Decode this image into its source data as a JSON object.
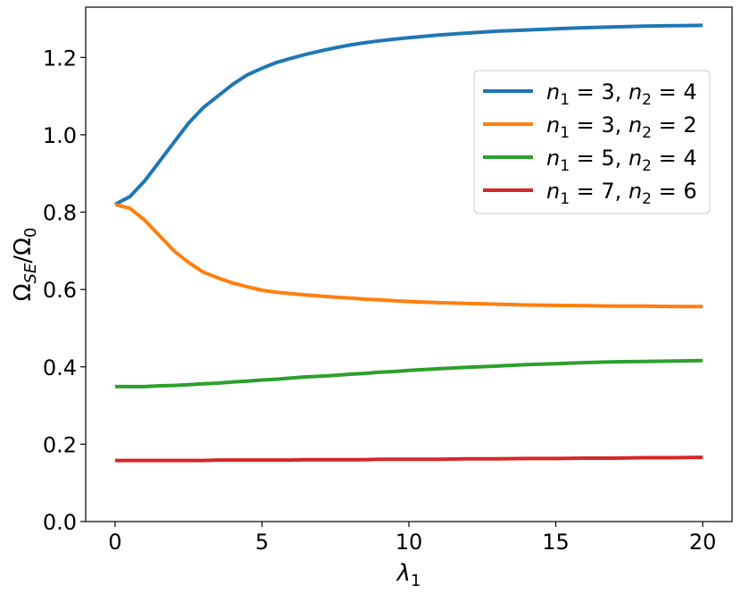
{
  "chart_data": {
    "type": "line",
    "xlabel_base": "λ",
    "xlabel_sub": "1",
    "ylabel_base": "Ω",
    "ylabel_sub1": "SE",
    "ylabel_mid": "/Ω",
    "ylabel_sub2": "0",
    "xlim": [
      -1,
      21
    ],
    "ylim": [
      0.0,
      1.33
    ],
    "xticks": [
      0,
      5,
      10,
      15,
      20
    ],
    "xtick_labels": [
      "0",
      "5",
      "10",
      "15",
      "20"
    ],
    "yticks": [
      0.0,
      0.2,
      0.4,
      0.6,
      0.8,
      1.0,
      1.2
    ],
    "ytick_labels": [
      "0.0",
      "0.2",
      "0.4",
      "0.6",
      "0.8",
      "1.0",
      "1.2"
    ],
    "grid": false,
    "legend_position": "upper-right",
    "x": [
      0,
      0.5,
      1,
      1.5,
      2,
      2.5,
      3,
      3.5,
      4,
      4.5,
      5,
      5.5,
      6,
      6.5,
      7,
      7.5,
      8,
      8.5,
      9,
      9.5,
      10,
      11,
      12,
      13,
      14,
      15,
      16,
      17,
      18,
      19,
      20
    ],
    "series": [
      {
        "name_parts": [
          "n",
          "1",
          " = 3, ",
          "n",
          "2",
          " = 4"
        ],
        "color": "#1f77b4",
        "values": [
          0.82,
          0.84,
          0.88,
          0.93,
          0.98,
          1.03,
          1.07,
          1.1,
          1.13,
          1.155,
          1.172,
          1.187,
          1.198,
          1.208,
          1.217,
          1.225,
          1.232,
          1.238,
          1.243,
          1.247,
          1.251,
          1.258,
          1.263,
          1.268,
          1.271,
          1.274,
          1.277,
          1.279,
          1.281,
          1.282,
          1.283
        ]
      },
      {
        "name_parts": [
          "n",
          "1",
          " = 3, ",
          "n",
          "2",
          " = 2"
        ],
        "color": "#ff7f0e",
        "values": [
          0.82,
          0.81,
          0.78,
          0.74,
          0.7,
          0.67,
          0.645,
          0.63,
          0.617,
          0.607,
          0.598,
          0.593,
          0.589,
          0.586,
          0.583,
          0.58,
          0.578,
          0.575,
          0.573,
          0.571,
          0.569,
          0.566,
          0.564,
          0.562,
          0.56,
          0.559,
          0.558,
          0.557,
          0.557,
          0.556,
          0.556
        ]
      },
      {
        "name_parts": [
          "n",
          "1",
          " = 5, ",
          "n",
          "2",
          " = 4"
        ],
        "color": "#2ca02c",
        "values": [
          0.349,
          0.349,
          0.349,
          0.351,
          0.352,
          0.354,
          0.356,
          0.358,
          0.361,
          0.363,
          0.366,
          0.368,
          0.371,
          0.374,
          0.376,
          0.378,
          0.381,
          0.383,
          0.386,
          0.388,
          0.391,
          0.395,
          0.399,
          0.402,
          0.406,
          0.408,
          0.411,
          0.413,
          0.414,
          0.415,
          0.416
        ]
      },
      {
        "name_parts": [
          "n",
          "1",
          " = 7, ",
          "n",
          "2",
          " = 6"
        ],
        "color": "#d62728",
        "values": [
          0.158,
          0.158,
          0.158,
          0.158,
          0.158,
          0.158,
          0.158,
          0.159,
          0.159,
          0.159,
          0.159,
          0.159,
          0.159,
          0.16,
          0.16,
          0.16,
          0.16,
          0.16,
          0.161,
          0.161,
          0.161,
          0.161,
          0.162,
          0.162,
          0.163,
          0.163,
          0.164,
          0.164,
          0.165,
          0.165,
          0.166
        ]
      }
    ]
  }
}
